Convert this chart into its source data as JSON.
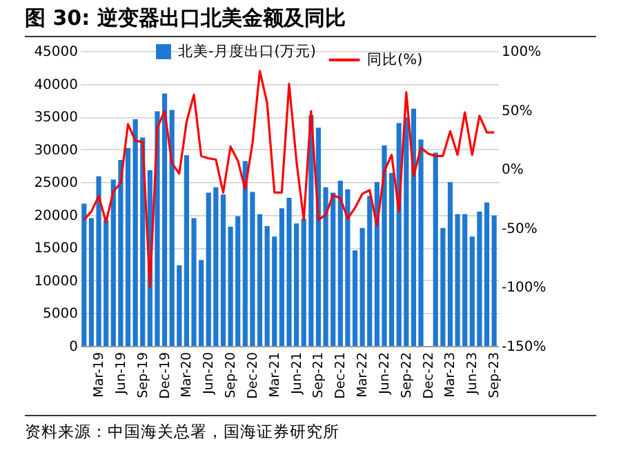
{
  "chart_data": {
    "type": "bar",
    "title": "图 30: 逆变器出口北美金额及同比",
    "annotations": [
      "资料来源：中国海关总署，国海证券研究所"
    ],
    "categories": [
      null,
      null,
      "Mar-19",
      null,
      null,
      "Jun-19",
      null,
      null,
      "Sep-19",
      null,
      null,
      "Dec-19",
      null,
      null,
      "Mar-20",
      null,
      null,
      "Jun-20",
      null,
      null,
      "Sep-20",
      null,
      null,
      "Dec-20",
      null,
      null,
      "Mar-21",
      null,
      null,
      "Jun-21",
      null,
      null,
      "Sep-21",
      null,
      null,
      "Dec-21",
      null,
      null,
      "Mar-22",
      null,
      null,
      "Jun-22",
      null,
      null,
      "Sep-22",
      null,
      null,
      "Dec-22",
      null,
      null,
      "Mar-23",
      null,
      null,
      "Jun-23",
      null,
      null,
      "Sep-23"
    ],
    "series": [
      {
        "name": "北美-月度出口(万元)",
        "type": "bar",
        "color": "#1f78d1",
        "values": [
          21700,
          19500,
          25900,
          19200,
          25400,
          28400,
          30200,
          34600,
          31800,
          26800,
          35800,
          38500,
          36000,
          12300,
          29100,
          19500,
          13100,
          23400,
          24200,
          23100,
          18200,
          19800,
          28200,
          23500,
          20100,
          18300,
          16700,
          21000,
          22600,
          18700,
          19400,
          35200,
          33300,
          24200,
          23400,
          25200,
          23900,
          14600,
          18000,
          22900,
          25000,
          30600,
          26400,
          34000,
          34900,
          36200,
          31500,
          null,
          29500,
          18000,
          25000,
          20100,
          20100,
          16700,
          20500,
          21900,
          19900
        ]
      },
      {
        "name": "同比(%)",
        "type": "line",
        "axis": "y2",
        "color": "#ff0000",
        "values": [
          -43,
          -36,
          -23,
          -45,
          -19,
          -12,
          38,
          24,
          23,
          -100,
          35,
          49,
          5,
          -4,
          40,
          63,
          11,
          9,
          8,
          -20,
          19,
          7,
          -17,
          22,
          83,
          56,
          -20,
          -20,
          72,
          7,
          -43,
          49,
          -43,
          -39,
          -22,
          -25,
          -42,
          -33,
          -21,
          -18,
          -48,
          -2,
          12,
          -36,
          65,
          -6,
          18,
          13,
          11,
          11,
          32,
          12,
          48,
          12,
          45,
          31,
          31
        ]
      }
    ],
    "ylim": [
      0,
      45000
    ],
    "yticks": [
      0,
      5000,
      10000,
      15000,
      20000,
      25000,
      30000,
      35000,
      40000,
      45000
    ],
    "y2lim": [
      -150,
      100
    ],
    "y2ticks": [
      {
        "value": -150,
        "label": "-150%"
      },
      {
        "value": -100,
        "label": "-100%"
      },
      {
        "value": -50,
        "label": "-50%"
      },
      {
        "value": 0,
        "label": "0%"
      },
      {
        "value": 50,
        "label": "50%"
      },
      {
        "value": 100,
        "label": "100%"
      }
    ],
    "grid": "y",
    "legend": "top",
    "marker": "none",
    "line_style": "solid"
  }
}
